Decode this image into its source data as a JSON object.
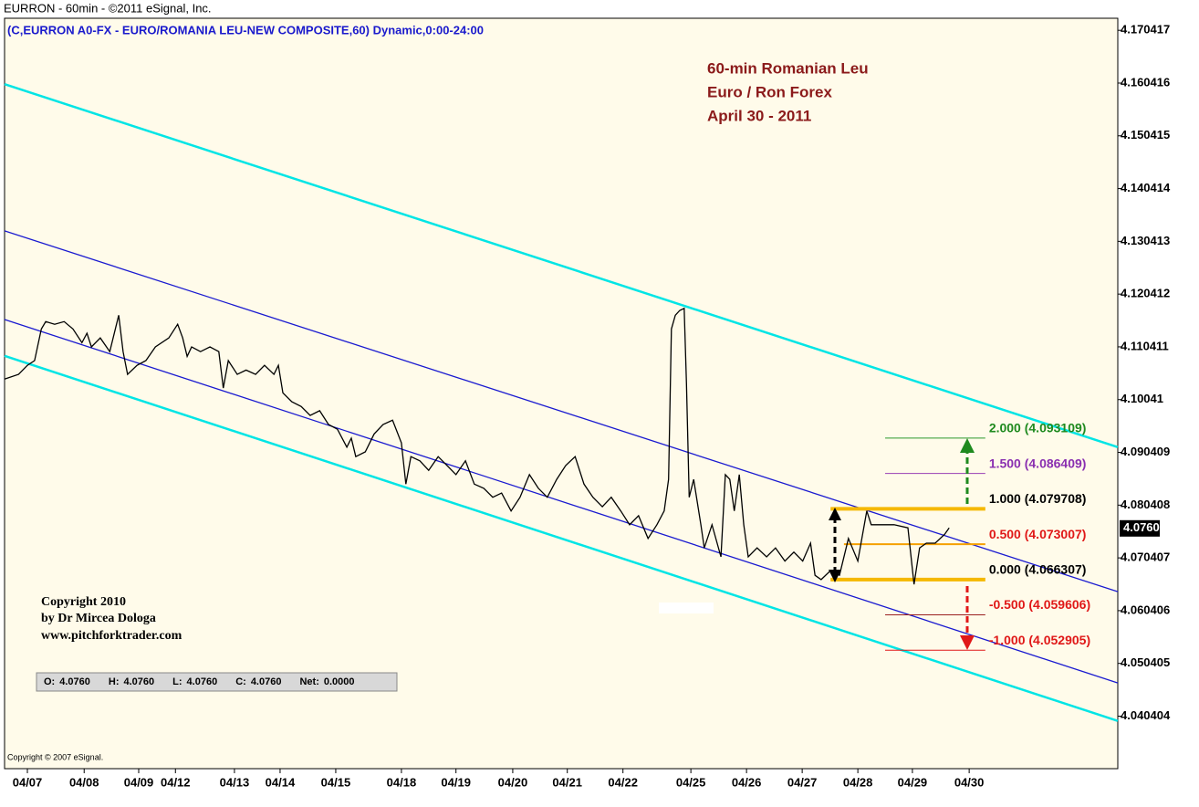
{
  "chart_data": {
    "type": "line",
    "header": "EURRON - 60min - ©2011 eSignal, Inc.",
    "subtitle": "(C,EURRON A0-FX - EURO/ROMANIA LEU-NEW COMPOSITE,60) Dynamic,0:00-24:00",
    "annotations": [
      "60-min Romanian Leu",
      "Euro / Ron Forex",
      "April 30 - 2011"
    ],
    "copyright": [
      "Copyright 2010",
      "by Dr Mircea Dologa",
      "www.pitchforktrader.com"
    ],
    "footer": "Copyright © 2007 eSignal.",
    "ohlc": [
      {
        "label": "O:",
        "value": "4.0760"
      },
      {
        "label": "H:",
        "value": "4.0760"
      },
      {
        "label": "L:",
        "value": "4.0760"
      },
      {
        "label": "C:",
        "value": "4.0760"
      },
      {
        "label": "Net:",
        "value": "0.0000"
      }
    ],
    "last_value": 4.076,
    "last_value_label": "4.0760",
    "xlim": [
      -0.41,
      19.59
    ],
    "ylim": [
      4.0308,
      4.1727
    ],
    "xticks": [
      {
        "value": 0,
        "label": "04/07"
      },
      {
        "value": 1.02,
        "label": "04/08"
      },
      {
        "value": 2.0,
        "label": "04/09"
      },
      {
        "value": 2.66,
        "label": "04/12"
      },
      {
        "value": 3.72,
        "label": "04/13"
      },
      {
        "value": 4.54,
        "label": "04/14"
      },
      {
        "value": 5.54,
        "label": "04/15"
      },
      {
        "value": 6.72,
        "label": "04/18"
      },
      {
        "value": 7.7,
        "label": "04/19"
      },
      {
        "value": 8.72,
        "label": "04/20"
      },
      {
        "value": 9.7,
        "label": "04/21"
      },
      {
        "value": 10.7,
        "label": "04/22"
      },
      {
        "value": 11.92,
        "label": "04/25"
      },
      {
        "value": 12.92,
        "label": "04/26"
      },
      {
        "value": 13.92,
        "label": "04/27"
      },
      {
        "value": 14.92,
        "label": "04/28"
      },
      {
        "value": 15.9,
        "label": "04/29"
      },
      {
        "value": 16.92,
        "label": "04/30"
      }
    ],
    "yticks": [
      4.170417,
      4.160416,
      4.150415,
      4.140414,
      4.130413,
      4.120412,
      4.110411,
      4.10041,
      4.090409,
      4.080408,
      4.070407,
      4.060406,
      4.050405,
      4.040404
    ],
    "series": [
      {
        "name": "EURRON",
        "color": "#000000",
        "x": [
          -0.41,
          -0.16,
          0,
          0.13,
          0.25,
          0.33,
          0.49,
          0.66,
          0.82,
          0.98,
          1.07,
          1.15,
          1.31,
          1.48,
          1.64,
          1.72,
          1.8,
          1.97,
          2.13,
          2.3,
          2.54,
          2.7,
          2.79,
          2.87,
          2.95,
          3.11,
          3.28,
          3.44,
          3.52,
          3.61,
          3.77,
          3.93,
          4.1,
          4.26,
          4.43,
          4.51,
          4.59,
          4.75,
          4.92,
          5.08,
          5.25,
          5.41,
          5.57,
          5.74,
          5.82,
          5.9,
          6.07,
          6.23,
          6.39,
          6.56,
          6.72,
          6.8,
          6.89,
          7.05,
          7.21,
          7.38,
          7.54,
          7.7,
          7.87,
          8.03,
          8.2,
          8.36,
          8.52,
          8.69,
          8.85,
          9.02,
          9.18,
          9.34,
          9.51,
          9.67,
          9.84,
          10.0,
          10.16,
          10.33,
          10.49,
          10.66,
          10.82,
          10.98,
          11.15,
          11.31,
          11.44,
          11.52,
          11.57,
          11.64,
          11.72,
          11.8,
          11.84,
          11.89,
          11.97,
          12.1,
          12.16,
          12.3,
          12.46,
          12.54,
          12.62,
          12.7,
          12.79,
          12.87,
          12.95,
          13.11,
          13.28,
          13.44,
          13.61,
          13.77,
          13.93,
          14.07,
          14.15,
          14.26,
          14.43,
          14.59,
          14.75,
          14.92,
          15.08,
          15.16,
          15.33,
          15.57,
          15.82,
          15.93,
          16.03,
          16.15,
          16.31,
          16.48,
          16.56
        ],
        "values": [
          4.1043,
          4.1052,
          4.1069,
          4.1078,
          4.1138,
          4.1152,
          4.1147,
          4.1152,
          4.1138,
          4.1112,
          4.113,
          4.1104,
          4.1121,
          4.1095,
          4.1164,
          4.1095,
          4.1052,
          4.1069,
          4.1078,
          4.1104,
          4.1121,
          4.1147,
          4.1121,
          4.1086,
          4.1104,
          4.1095,
          4.1104,
          4.1095,
          4.1026,
          4.1078,
          4.1052,
          4.106,
          4.1052,
          4.1069,
          4.1052,
          4.1069,
          4.1017,
          4.1,
          4.0991,
          4.0974,
          4.0983,
          4.0957,
          4.0948,
          4.0914,
          4.0931,
          4.0896,
          4.0905,
          4.0939,
          4.0957,
          4.0965,
          4.0922,
          4.0844,
          4.0896,
          4.0888,
          4.087,
          4.0896,
          4.0879,
          4.0862,
          4.0888,
          4.0844,
          4.0836,
          4.0819,
          4.0827,
          4.0793,
          4.0819,
          4.0862,
          4.0836,
          4.0819,
          4.0853,
          4.0879,
          4.0896,
          4.0844,
          4.0819,
          4.0801,
          4.0819,
          4.0793,
          4.0767,
          4.0784,
          4.0741,
          4.0767,
          4.0793,
          4.0853,
          4.1138,
          4.1164,
          4.1173,
          4.1177,
          4.1035,
          4.0819,
          4.0853,
          4.0767,
          4.0723,
          4.0767,
          4.0706,
          4.0862,
          4.0853,
          4.0793,
          4.0862,
          4.0767,
          4.0706,
          4.0723,
          4.0706,
          4.0723,
          4.0698,
          4.0715,
          4.0698,
          4.0732,
          4.0671,
          4.0663,
          4.068,
          4.0671,
          4.0741,
          4.0698,
          4.0793,
          4.0767,
          4.0767,
          4.0767,
          4.0761,
          4.0654,
          4.0723,
          4.0732,
          4.0732,
          4.0749,
          4.0761
        ]
      }
    ],
    "channel_lines": [
      {
        "color": "#00e5e5",
        "x": [
          -0.41,
          19.59
        ],
        "values": [
          4.1602,
          4.0914
        ]
      },
      {
        "color": "#1a1ad0",
        "x": [
          -0.41,
          19.59
        ],
        "values": [
          4.1324,
          4.064
        ]
      },
      {
        "color": "#1a1ad0",
        "x": [
          -0.41,
          19.59
        ],
        "values": [
          4.1156,
          4.0467
        ]
      },
      {
        "color": "#00e5e5",
        "x": [
          -0.41,
          19.59
        ],
        "values": [
          4.1087,
          4.0395
        ]
      }
    ],
    "levels": [
      {
        "label": "2.000 (4.093109)",
        "value": 4.093109,
        "color": "#2e9a2e",
        "text_color": "#1f8a1f",
        "line_width": 1,
        "x": [
          15.41,
          17.21
        ]
      },
      {
        "label": "1.500 (4.086409)",
        "value": 4.086409,
        "color": "#9a3fb5",
        "text_color": "#8a2fb0",
        "line_width": 1,
        "x": [
          15.41,
          17.21
        ]
      },
      {
        "label": "1.000 (4.079708)",
        "value": 4.079708,
        "color": "#f5b800",
        "text_color": "#000000",
        "line_width": 4,
        "x": [
          14.43,
          17.21
        ]
      },
      {
        "label": "0.500 (4.073007)",
        "value": 4.073007,
        "color": "#f5a000",
        "text_color": "#e01818",
        "line_width": 2,
        "x": [
          14.67,
          17.21
        ]
      },
      {
        "label": "0.000 (4.066307)",
        "value": 4.066307,
        "color": "#f5b800",
        "text_color": "#000000",
        "line_width": 4,
        "x": [
          14.43,
          17.21
        ]
      },
      {
        "label": "-0.500 (4.059606)",
        "value": 4.059606,
        "color": "#9a2020",
        "text_color": "#e01818",
        "line_width": 1,
        "x": [
          15.41,
          17.21
        ]
      },
      {
        "label": "-1.000 (4.052905)",
        "value": 4.052905,
        "color": "#e01818",
        "text_color": "#e01818",
        "line_width": 1,
        "x": [
          15.41,
          17.21
        ]
      }
    ]
  }
}
